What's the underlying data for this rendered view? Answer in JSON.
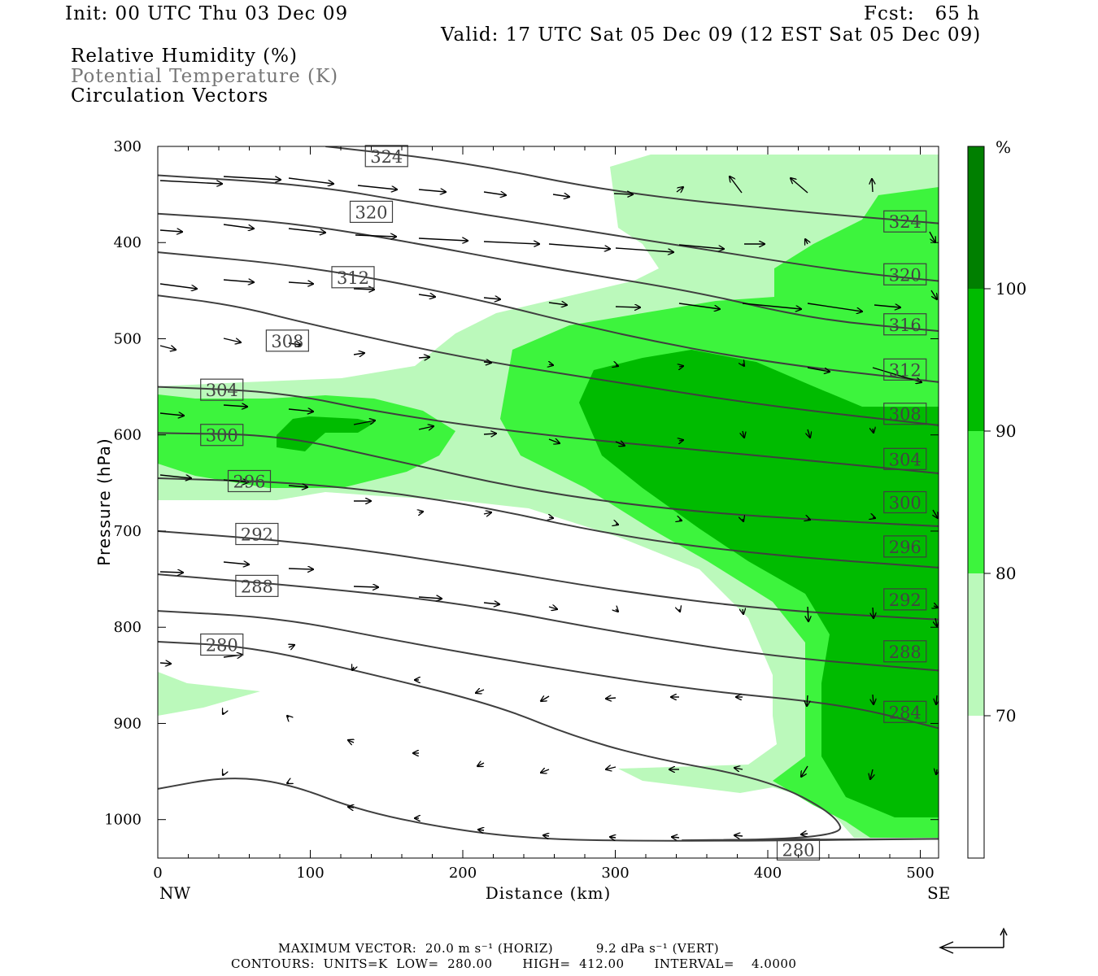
{
  "header": {
    "init": "Init: 00 UTC Thu 03 Dec 09",
    "fcst": "Fcst:   65 h",
    "valid": "Valid: 17 UTC Sat 05 Dec 09 (12 EST Sat 05 Dec 09)",
    "field1": "Relative Humidity (%)",
    "field2": "Potential Temperature (K)",
    "field3": "Circulation Vectors"
  },
  "footer": {
    "line1": "MAXIMUM VECTOR:  20.0 m s⁻¹ (HORIZ)          9.2 dPa s⁻¹ (VERT)",
    "line2": "CONTOURS:  UNITS=K  LOW=  280.00       HIGH=  412.00       INTERVAL=    4.0000"
  },
  "colors": {
    "rh_70_80": "#bbf9bb",
    "rh_80_90": "#3df43d",
    "rh_90_100": "#00bb00",
    "rh_100": "#007f00",
    "contour": "#3f3f3f"
  },
  "chart_data": {
    "type": "cross-section",
    "xlabel": "Distance (km)",
    "ylabel": "Pressure (hPa)",
    "xlim": [
      0,
      512
    ],
    "ylim": [
      1040,
      300
    ],
    "x_ticks": [
      "0",
      "100",
      "200",
      "300",
      "400",
      "500"
    ],
    "y_ticks": [
      "300",
      "400",
      "500",
      "600",
      "700",
      "800",
      "900",
      "1000"
    ],
    "x_end_labels": {
      "left": "NW",
      "right": "SE"
    },
    "colorbar": {
      "unit": "%",
      "levels": [
        "70",
        "80",
        "90",
        "100"
      ]
    },
    "theta_contours": [
      {
        "value": 324,
        "points": [
          [
            110,
            300
          ],
          [
            200,
            316
          ],
          [
            300,
            348
          ],
          [
            420,
            368
          ],
          [
            512,
            380
          ]
        ]
      },
      {
        "value": 320,
        "points": [
          [
            0,
            330
          ],
          [
            100,
            340
          ],
          [
            180,
            362
          ],
          [
            250,
            380
          ],
          [
            350,
            405
          ],
          [
            450,
            430
          ],
          [
            512,
            440
          ]
        ]
      },
      {
        "value": 316,
        "points": [
          [
            0,
            370
          ],
          [
            80,
            378
          ],
          [
            150,
            395
          ],
          [
            250,
            425
          ],
          [
            350,
            450
          ],
          [
            430,
            480
          ],
          [
            512,
            492
          ]
        ]
      },
      {
        "value": 312,
        "points": [
          [
            0,
            410
          ],
          [
            100,
            425
          ],
          [
            200,
            455
          ],
          [
            300,
            495
          ],
          [
            400,
            525
          ],
          [
            512,
            545
          ]
        ]
      },
      {
        "value": 308,
        "points": [
          [
            0,
            455
          ],
          [
            50,
            465
          ],
          [
            100,
            485
          ],
          [
            200,
            520
          ],
          [
            300,
            545
          ],
          [
            400,
            570
          ],
          [
            512,
            590
          ]
        ]
      },
      {
        "value": 304,
        "points": [
          [
            0,
            550
          ],
          [
            80,
            555
          ],
          [
            150,
            578
          ],
          [
            250,
            600
          ],
          [
            350,
            615
          ],
          [
            450,
            630
          ],
          [
            512,
            640
          ]
        ]
      },
      {
        "value": 300,
        "points": [
          [
            0,
            598
          ],
          [
            80,
            600
          ],
          [
            150,
            625
          ],
          [
            250,
            660
          ],
          [
            350,
            680
          ],
          [
            450,
            690
          ],
          [
            512,
            695
          ]
        ]
      },
      {
        "value": 296,
        "points": [
          [
            0,
            645
          ],
          [
            100,
            650
          ],
          [
            200,
            670
          ],
          [
            300,
            705
          ],
          [
            400,
            725
          ],
          [
            512,
            738
          ]
        ]
      },
      {
        "value": 292,
        "points": [
          [
            0,
            700
          ],
          [
            100,
            712
          ],
          [
            200,
            735
          ],
          [
            300,
            762
          ],
          [
            400,
            782
          ],
          [
            512,
            792
          ]
        ]
      },
      {
        "value": 288,
        "points": [
          [
            0,
            745
          ],
          [
            100,
            758
          ],
          [
            200,
            775
          ],
          [
            300,
            805
          ],
          [
            400,
            830
          ],
          [
            512,
            845
          ]
        ]
      },
      {
        "value": 284,
        "points": [
          [
            0,
            783
          ],
          [
            80,
            790
          ],
          [
            160,
            815
          ],
          [
            250,
            840
          ],
          [
            350,
            865
          ],
          [
            450,
            880
          ],
          [
            512,
            905
          ]
        ]
      },
      {
        "value": 280,
        "points": [
          [
            0,
            815
          ],
          [
            60,
            820
          ],
          [
            130,
            845
          ],
          [
            220,
            880
          ],
          [
            270,
            912
          ],
          [
            320,
            935
          ],
          [
            400,
            958
          ],
          [
            445,
            995
          ],
          [
            450,
            1020
          ],
          [
            300,
            1022
          ],
          [
            512,
            1020
          ]
        ]
      },
      {
        "value": 280,
        "points": [
          [
            0,
            968
          ],
          [
            45,
            955
          ],
          [
            85,
            962
          ],
          [
            135,
            992
          ],
          [
            200,
            1012
          ],
          [
            250,
            1020
          ],
          [
            300,
            1022
          ],
          [
            400,
            1022
          ],
          [
            512,
            1020
          ]
        ]
      }
    ],
    "rh_regions": [
      {
        "level": "70-80",
        "points": [
          [
            300,
            345
          ],
          [
            320,
            330
          ],
          [
            400,
            322
          ],
          [
            512,
            320
          ],
          [
            512,
            300
          ],
          [
            350,
            300
          ],
          [
            300,
            310
          ],
          [
            295,
            340
          ],
          [
            320,
            400
          ],
          [
            330,
            420
          ],
          [
            280,
            425
          ],
          [
            215,
            460
          ],
          [
            180,
            520
          ],
          [
            150,
            560
          ],
          [
            0,
            560
          ],
          [
            0,
            650
          ],
          [
            150,
            660
          ],
          [
            200,
            660
          ],
          [
            270,
            668
          ],
          [
            360,
            705
          ],
          [
            400,
            745
          ],
          [
            420,
            830
          ],
          [
            430,
            870
          ],
          [
            440,
            920
          ],
          [
            470,
            970
          ],
          [
            512,
            1020
          ],
          [
            512,
            1030
          ],
          [
            440,
            1030
          ],
          [
            400,
            970
          ],
          [
            320,
            972
          ],
          [
            300,
            955
          ],
          [
            415,
            950
          ],
          [
            400,
            880
          ],
          [
            380,
            840
          ],
          [
            340,
            780
          ],
          [
            300,
            740
          ],
          [
            250,
            710
          ],
          [
            200,
            690
          ]
        ]
      }
    ]
  }
}
